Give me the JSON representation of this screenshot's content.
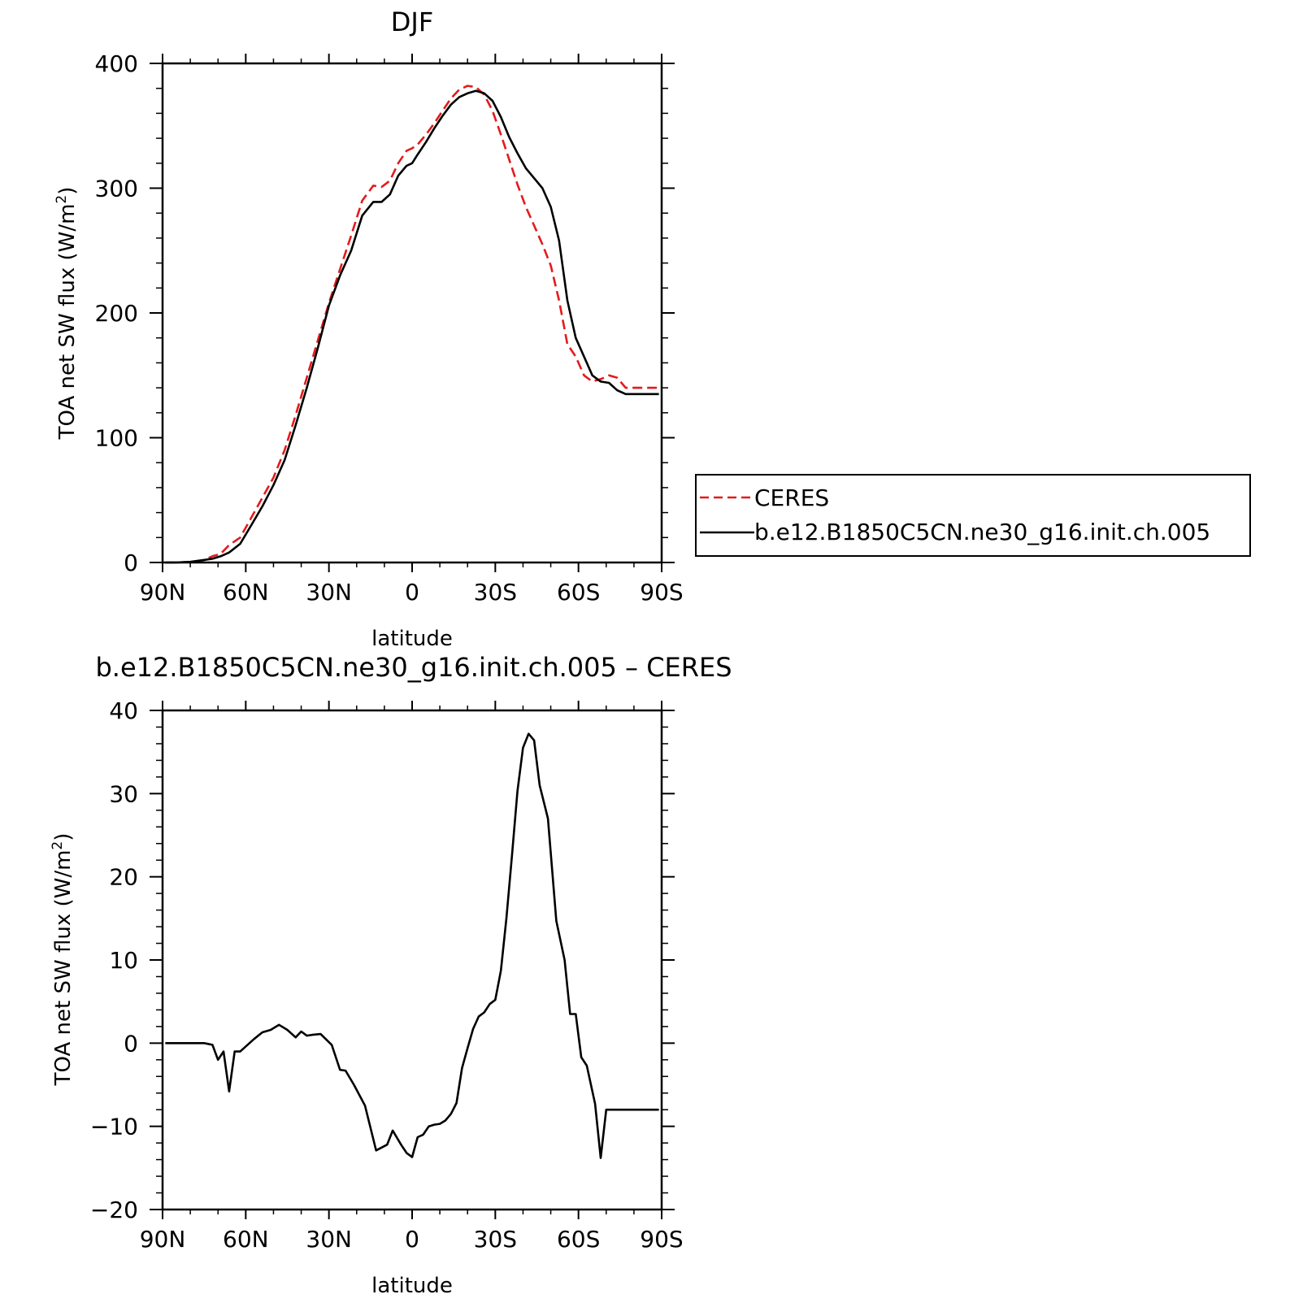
{
  "chart_data": [
    {
      "type": "line",
      "title": "DJF",
      "xlabel": "latitude",
      "ylabel_parts": [
        "TOA net SW flux (W/m",
        "2",
        ")"
      ],
      "xlim": [
        90,
        -90
      ],
      "ylim": [
        0,
        400
      ],
      "x_ticks": [
        90,
        60,
        30,
        0,
        -30,
        -60,
        -90
      ],
      "x_tick_labels": [
        "90N",
        "60N",
        "30N",
        "0",
        "30S",
        "60S",
        "90S"
      ],
      "y_ticks": [
        0,
        100,
        200,
        300,
        400
      ],
      "y_tick_labels": [
        "0",
        "100",
        "200",
        "300",
        "400"
      ],
      "grid": false,
      "legend_position": "right",
      "series": [
        {
          "name": "CERES",
          "color": "#e41a1c",
          "dash": "dashed",
          "x": [
            89,
            85,
            80,
            75,
            72,
            69,
            66,
            62,
            58,
            54,
            50,
            46,
            42,
            38,
            34,
            30,
            26,
            22,
            18,
            14,
            11,
            8,
            5,
            2,
            0,
            -2,
            -5,
            -8,
            -11,
            -14,
            -17,
            -20,
            -23,
            -26,
            -29,
            -32,
            -35,
            -38,
            -41,
            -44,
            -47,
            -50,
            -53,
            -56,
            -59,
            -62,
            -65,
            -68,
            -71,
            -74,
            -77,
            -79,
            -82,
            -85,
            -88,
            -89
          ],
          "y": [
            0,
            0,
            0.5,
            2,
            5,
            7,
            14,
            20,
            36,
            52,
            68,
            90,
            118,
            148,
            178,
            208,
            235,
            262,
            290,
            302,
            301,
            306,
            320,
            330,
            332,
            335,
            343,
            352,
            362,
            372,
            379,
            382,
            381,
            375,
            362,
            343,
            323,
            303,
            285,
            270,
            255,
            238,
            210,
            175,
            165,
            150,
            145,
            147,
            150,
            148,
            140,
            140,
            140,
            140,
            140,
            140
          ]
        },
        {
          "name": "b.e12.B1850C5CN.ne30_g16.init.ch.005",
          "color": "#000000",
          "dash": "solid",
          "x": [
            89,
            85,
            80,
            75,
            72,
            69,
            66,
            62,
            58,
            54,
            50,
            46,
            42,
            38,
            34,
            30,
            26,
            22,
            18,
            14,
            11,
            8,
            5,
            2,
            0,
            -2,
            -5,
            -8,
            -11,
            -14,
            -17,
            -20,
            -23,
            -26,
            -29,
            -32,
            -35,
            -38,
            -41,
            -44,
            -47,
            -50,
            -53,
            -56,
            -59,
            -62,
            -65,
            -68,
            -71,
            -74,
            -77,
            -79,
            -82,
            -85,
            -88,
            -89
          ],
          "y": [
            0,
            0,
            0.5,
            2,
            3,
            5,
            8,
            15,
            30,
            45,
            62,
            82,
            110,
            140,
            172,
            206,
            230,
            250,
            278,
            289,
            289,
            295,
            310,
            318,
            320,
            327,
            337,
            348,
            358,
            367,
            373,
            376,
            378,
            376,
            370,
            357,
            341,
            328,
            316,
            308,
            300,
            285,
            258,
            210,
            180,
            165,
            150,
            145,
            144,
            138,
            135,
            135,
            135,
            135,
            135,
            135
          ]
        }
      ]
    },
    {
      "type": "line",
      "title": "b.e12.B1850C5CN.ne30_g16.init.ch.005 – CERES",
      "xlabel": "latitude",
      "ylabel_parts": [
        "TOA net SW flux (W/m",
        "2",
        ")"
      ],
      "xlim": [
        90,
        -90
      ],
      "ylim": [
        -20,
        40
      ],
      "x_ticks": [
        90,
        60,
        30,
        0,
        -30,
        -60,
        -90
      ],
      "x_tick_labels": [
        "90N",
        "60N",
        "30N",
        "0",
        "30S",
        "60S",
        "90S"
      ],
      "y_ticks": [
        -20,
        -10,
        0,
        10,
        20,
        30,
        40
      ],
      "y_tick_labels": [
        "−20",
        "−10",
        "0",
        "10",
        "20",
        "30",
        "40"
      ],
      "grid": false,
      "series": [
        {
          "color": "#000000",
          "dash": "solid",
          "x": [
            89,
            85,
            80,
            75,
            72,
            70,
            68,
            66,
            64,
            62,
            60,
            57,
            54,
            51,
            48,
            45,
            42,
            40,
            38,
            36,
            33,
            29,
            26,
            24,
            21,
            17,
            13,
            9,
            7,
            4,
            2,
            0,
            -2,
            -4,
            -6,
            -8,
            -10,
            -12,
            -14,
            -16,
            -18,
            -20,
            -22,
            -24,
            -26,
            -28,
            -30,
            -32,
            -34,
            -36,
            -38,
            -40,
            -42,
            -44,
            -46,
            -49,
            -52,
            -55,
            -57,
            -59,
            -61,
            -63,
            -66,
            -68,
            -70,
            -72,
            -74,
            -76,
            -78,
            -80,
            -82,
            -85,
            -87,
            -89
          ],
          "y": [
            0,
            0,
            0,
            0,
            -0.2,
            -2,
            -1,
            -5.8,
            -1,
            -1,
            -0.4,
            0.5,
            1.3,
            1.6,
            2.2,
            1.6,
            0.7,
            1.4,
            0.9,
            1,
            1.1,
            -0.2,
            -3.2,
            -3.3,
            -5,
            -7.5,
            -12.9,
            -12.2,
            -10.5,
            -12.2,
            -13.2,
            -13.7,
            -11.3,
            -11,
            -10,
            -9.8,
            -9.7,
            -9.3,
            -8.5,
            -7.2,
            -3,
            -0.6,
            1.7,
            3.2,
            3.7,
            4.7,
            5.2,
            8.7,
            15,
            22.5,
            30.3,
            35.5,
            37.2,
            36.4,
            31,
            27,
            14.7,
            10,
            3.5,
            3.5,
            -1.7,
            -2.7,
            -7.3,
            -13.8,
            -8,
            -8,
            -8,
            -8,
            -8,
            -8,
            -8,
            -8,
            -8,
            -8
          ]
        }
      ]
    }
  ],
  "legend": {
    "entries": [
      {
        "label": "CERES",
        "color": "#e41a1c",
        "dash": "dashed"
      },
      {
        "label": "b.e12.B1850C5CN.ne30_g16.init.ch.005",
        "color": "#000000",
        "dash": "solid"
      }
    ]
  }
}
